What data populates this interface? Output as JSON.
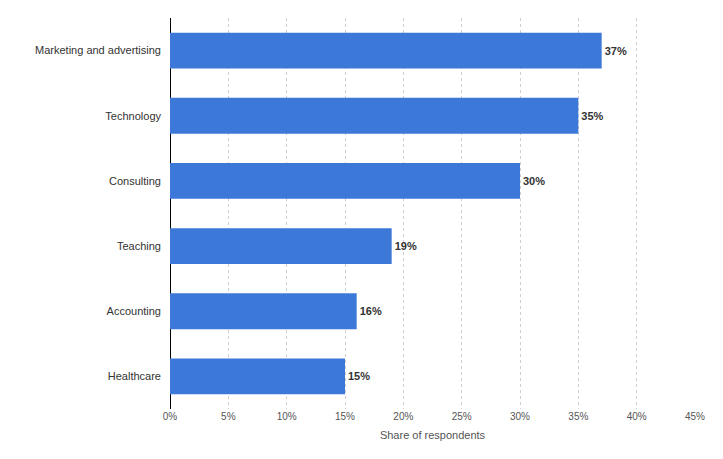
{
  "chart_data": {
    "type": "bar",
    "orientation": "horizontal",
    "categories": [
      "Marketing and advertising",
      "Technology",
      "Consulting",
      "Teaching",
      "Accounting",
      "Healthcare"
    ],
    "values": [
      37,
      35,
      30,
      19,
      16,
      15
    ],
    "value_labels": [
      "37%",
      "35%",
      "30%",
      "19%",
      "16%",
      "15%"
    ],
    "data_labels": true,
    "color": "#3c78d8",
    "xlabel": "Share of respondents",
    "xlim": [
      0,
      45
    ],
    "xticks": [
      {
        "value": 0,
        "label": "0%"
      },
      {
        "value": 5,
        "label": "5%"
      },
      {
        "value": 10,
        "label": "10%"
      },
      {
        "value": 15,
        "label": "15%"
      },
      {
        "value": 20,
        "label": "20%"
      },
      {
        "value": 25,
        "label": "25%"
      },
      {
        "value": 30,
        "label": "30%"
      },
      {
        "value": 35,
        "label": "35%"
      },
      {
        "value": 40,
        "label": "40%"
      },
      {
        "value": 45,
        "label": "45%"
      }
    ],
    "grid": true
  }
}
